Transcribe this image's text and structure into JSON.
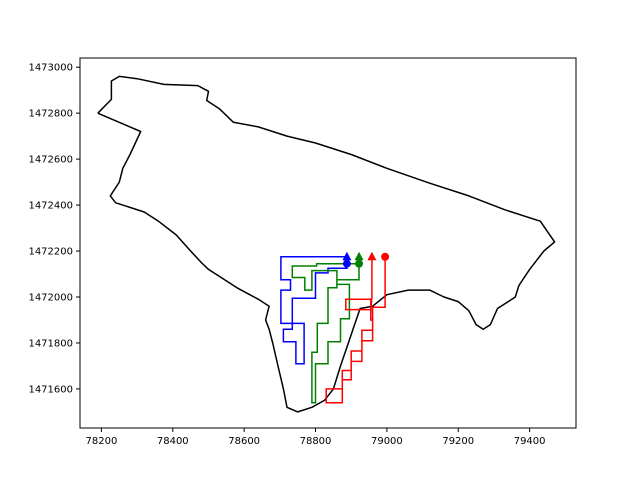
{
  "chart_data": {
    "type": "line",
    "title": "",
    "xlabel": "",
    "ylabel": "",
    "xlim": [
      78140,
      79530
    ],
    "ylim": [
      1471430,
      1473040
    ],
    "x_ticks": [
      78200,
      78400,
      78600,
      78800,
      79000,
      79200,
      79400
    ],
    "y_ticks": [
      1471600,
      1471800,
      1472000,
      1472200,
      1472400,
      1472600,
      1472800,
      1473000
    ],
    "grid": false,
    "boundary": {
      "color": "#000000",
      "points": [
        [
          78190,
          1472800
        ],
        [
          78228,
          1472860
        ],
        [
          78228,
          1472940
        ],
        [
          78250,
          1472960
        ],
        [
          78300,
          1472950
        ],
        [
          78375,
          1472925
        ],
        [
          78470,
          1472920
        ],
        [
          78500,
          1472895
        ],
        [
          78495,
          1472855
        ],
        [
          78530,
          1472820
        ],
        [
          78570,
          1472760
        ],
        [
          78640,
          1472740
        ],
        [
          78720,
          1472700
        ],
        [
          78800,
          1472670
        ],
        [
          78900,
          1472620
        ],
        [
          79000,
          1472560
        ],
        [
          79120,
          1472495
        ],
        [
          79230,
          1472440
        ],
        [
          79330,
          1472380
        ],
        [
          79430,
          1472330
        ],
        [
          79470,
          1472240
        ],
        [
          79440,
          1472200
        ],
        [
          79400,
          1472120
        ],
        [
          79370,
          1472050
        ],
        [
          79360,
          1472000
        ],
        [
          79340,
          1471980
        ],
        [
          79310,
          1471950
        ],
        [
          79290,
          1471880
        ],
        [
          79270,
          1471860
        ],
        [
          79250,
          1471880
        ],
        [
          79230,
          1471940
        ],
        [
          79200,
          1471980
        ],
        [
          79160,
          1472000
        ],
        [
          79120,
          1472030
        ],
        [
          79060,
          1472030
        ],
        [
          79000,
          1472010
        ],
        [
          78960,
          1471960
        ],
        [
          78925,
          1471950
        ],
        [
          78905,
          1471860
        ],
        [
          78890,
          1471790
        ],
        [
          78870,
          1471700
        ],
        [
          78850,
          1471600
        ],
        [
          78825,
          1471550
        ],
        [
          78790,
          1471520
        ],
        [
          78750,
          1471500
        ],
        [
          78720,
          1471520
        ],
        [
          78710,
          1471600
        ],
        [
          78695,
          1471700
        ],
        [
          78680,
          1471800
        ],
        [
          78670,
          1471860
        ],
        [
          78660,
          1471900
        ],
        [
          78670,
          1471960
        ],
        [
          78640,
          1471990
        ],
        [
          78580,
          1472040
        ],
        [
          78500,
          1472120
        ],
        [
          78480,
          1472150
        ],
        [
          78450,
          1472200
        ],
        [
          78410,
          1472270
        ],
        [
          78360,
          1472330
        ],
        [
          78320,
          1472370
        ],
        [
          78240,
          1472410
        ],
        [
          78225,
          1472440
        ],
        [
          78250,
          1472500
        ],
        [
          78260,
          1472560
        ],
        [
          78280,
          1472620
        ],
        [
          78310,
          1472720
        ],
        [
          78190,
          1472800
        ]
      ]
    },
    "series": [
      {
        "color": "#0000ff",
        "start": [
          78888,
          1472145
        ],
        "end": [
          78888,
          1472175
        ],
        "points": [
          [
            78888,
            1472145
          ],
          [
            78888,
            1472175
          ],
          [
            78703,
            1472175
          ],
          [
            78703,
            1472075
          ],
          [
            78730,
            1472075
          ],
          [
            78730,
            1472030
          ],
          [
            78703,
            1472030
          ],
          [
            78703,
            1471885
          ],
          [
            78768,
            1471885
          ],
          [
            78768,
            1471710
          ],
          [
            78745,
            1471710
          ],
          [
            78745,
            1471805
          ],
          [
            78710,
            1471805
          ],
          [
            78710,
            1471860
          ],
          [
            78735,
            1471860
          ],
          [
            78735,
            1471995
          ],
          [
            78800,
            1471995
          ],
          [
            78800,
            1472105
          ],
          [
            78835,
            1472105
          ],
          [
            78835,
            1472125
          ],
          [
            78888,
            1472125
          ],
          [
            78888,
            1472145
          ]
        ]
      },
      {
        "color": "#008000",
        "start": [
          78922,
          1472145
        ],
        "end": [
          78922,
          1472175
        ],
        "points": [
          [
            78922,
            1472145
          ],
          [
            78922,
            1472175
          ],
          [
            78922,
            1472075
          ],
          [
            78860,
            1472075
          ],
          [
            78860,
            1472040
          ],
          [
            78835,
            1472040
          ],
          [
            78835,
            1471885
          ],
          [
            78805,
            1471885
          ],
          [
            78805,
            1471760
          ],
          [
            78790,
            1471760
          ],
          [
            78790,
            1471540
          ],
          [
            78800,
            1471540
          ],
          [
            78800,
            1471710
          ],
          [
            78835,
            1471710
          ],
          [
            78835,
            1471805
          ],
          [
            78870,
            1471805
          ],
          [
            78870,
            1471905
          ],
          [
            78895,
            1471905
          ],
          [
            78895,
            1472055
          ],
          [
            78860,
            1472055
          ],
          [
            78860,
            1472115
          ],
          [
            78790,
            1472115
          ],
          [
            78790,
            1472030
          ],
          [
            78770,
            1472030
          ],
          [
            78770,
            1472085
          ],
          [
            78735,
            1472085
          ],
          [
            78735,
            1472135
          ],
          [
            78803,
            1472135
          ],
          [
            78803,
            1472145
          ],
          [
            78922,
            1472145
          ]
        ]
      },
      {
        "color": "#ff0000",
        "start": [
          78995,
          1472175
        ],
        "end": [
          78958,
          1472175
        ],
        "points": [
          [
            78995,
            1472175
          ],
          [
            78995,
            1471955
          ],
          [
            78960,
            1471955
          ],
          [
            78960,
            1471855
          ],
          [
            78930,
            1471855
          ],
          [
            78930,
            1471765
          ],
          [
            78900,
            1471765
          ],
          [
            78900,
            1471680
          ],
          [
            78875,
            1471680
          ],
          [
            78875,
            1471600
          ],
          [
            78830,
            1471600
          ],
          [
            78830,
            1471540
          ],
          [
            78875,
            1471540
          ],
          [
            78875,
            1471640
          ],
          [
            78900,
            1471640
          ],
          [
            78900,
            1471720
          ],
          [
            78930,
            1471720
          ],
          [
            78930,
            1471810
          ],
          [
            78960,
            1471810
          ],
          [
            78960,
            1471900
          ],
          [
            78955,
            1471900
          ],
          [
            78955,
            1471990
          ],
          [
            78885,
            1471990
          ],
          [
            78885,
            1471945
          ],
          [
            78955,
            1471945
          ],
          [
            78958,
            1472000
          ],
          [
            78958,
            1472175
          ]
        ]
      }
    ]
  }
}
